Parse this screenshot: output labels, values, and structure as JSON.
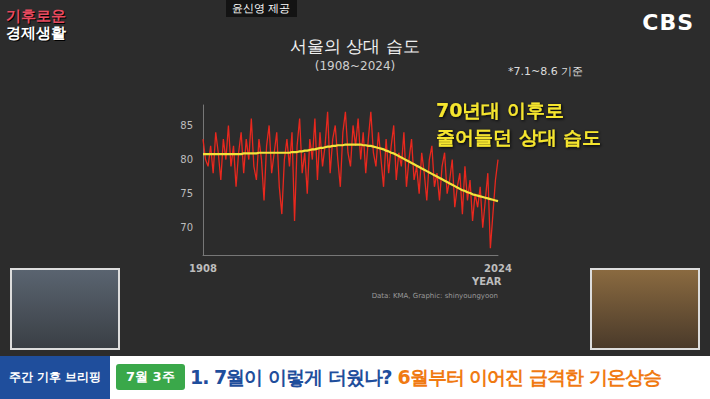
{
  "chart_data": {
    "type": "line",
    "title": "서울의 상대 습도",
    "subtitle": "(1908~2024)",
    "note": "*7.1~8.6 기준",
    "annotation": [
      "70년대 이후로",
      "줄어들던 상대 습도"
    ],
    "source": "Data: KMA, Graphic: shinyoungyoon",
    "x_label": "YEAR",
    "x": [
      1908,
      1909,
      1910,
      1911,
      1912,
      1913,
      1914,
      1915,
      1916,
      1917,
      1918,
      1919,
      1920,
      1921,
      1922,
      1923,
      1924,
      1925,
      1926,
      1927,
      1928,
      1929,
      1930,
      1931,
      1932,
      1933,
      1934,
      1935,
      1936,
      1937,
      1938,
      1939,
      1940,
      1941,
      1942,
      1943,
      1944,
      1945,
      1946,
      1947,
      1948,
      1949,
      1950,
      1951,
      1952,
      1953,
      1954,
      1955,
      1956,
      1957,
      1958,
      1959,
      1960,
      1961,
      1962,
      1963,
      1964,
      1965,
      1966,
      1967,
      1968,
      1969,
      1970,
      1971,
      1972,
      1973,
      1974,
      1975,
      1976,
      1977,
      1978,
      1979,
      1980,
      1981,
      1982,
      1983,
      1984,
      1985,
      1986,
      1987,
      1988,
      1989,
      1990,
      1991,
      1992,
      1993,
      1994,
      1995,
      1996,
      1997,
      1998,
      1999,
      2000,
      2001,
      2002,
      2003,
      2004,
      2005,
      2006,
      2007,
      2008,
      2009,
      2010,
      2011,
      2012,
      2013,
      2014,
      2015,
      2016,
      2017,
      2018,
      2019,
      2020,
      2021,
      2022,
      2023,
      2024
    ],
    "series": [
      {
        "color": "#e8281e",
        "values": [
          83,
          80,
          79,
          82,
          78,
          84,
          81,
          77,
          83,
          80,
          85,
          79,
          82,
          76,
          81,
          84,
          78,
          83,
          80,
          86,
          79,
          77,
          83,
          80,
          74,
          82,
          85,
          78,
          81,
          84,
          76,
          72,
          80,
          83,
          79,
          84,
          71,
          82,
          86,
          78,
          81,
          75,
          83,
          80,
          86,
          77,
          84,
          79,
          82,
          87,
          78,
          83,
          85,
          80,
          76,
          84,
          87,
          81,
          79,
          85,
          82,
          86,
          80,
          84,
          78,
          83,
          87,
          81,
          79,
          84,
          80,
          76,
          83,
          78,
          82,
          85,
          77,
          81,
          79,
          84,
          76,
          80,
          83,
          77,
          79,
          75,
          81,
          78,
          74,
          80,
          82,
          76,
          78,
          74,
          79,
          81,
          75,
          77,
          80,
          73,
          76,
          78,
          72,
          79,
          74,
          77,
          71,
          75,
          73,
          76,
          70,
          74,
          78,
          67,
          72,
          77,
          80
        ]
      },
      {
        "color": "#f2e33a",
        "values": [
          80.8,
          80.8,
          80.8,
          80.8,
          80.8,
          80.8,
          80.8,
          80.8,
          80.8,
          80.8,
          80.8,
          80.8,
          80.8,
          80.8,
          80.8,
          80.8,
          80.9,
          80.9,
          80.9,
          80.9,
          80.9,
          80.9,
          81.0,
          81.0,
          81.0,
          81.0,
          81.0,
          81.0,
          81.0,
          81.0,
          81.0,
          81.0,
          81.0,
          81.0,
          81.0,
          81.1,
          81.1,
          81.1,
          81.2,
          81.2,
          81.3,
          81.3,
          81.4,
          81.5,
          81.5,
          81.6,
          81.7,
          81.7,
          81.8,
          81.9,
          81.9,
          82.0,
          82.0,
          82.1,
          82.1,
          82.1,
          82.2,
          82.2,
          82.2,
          82.2,
          82.2,
          82.2,
          82.2,
          82.1,
          82.1,
          82.0,
          82.0,
          81.9,
          81.8,
          81.7,
          81.6,
          81.5,
          81.3,
          81.2,
          81.0,
          80.9,
          80.7,
          80.5,
          80.3,
          80.1,
          79.9,
          79.7,
          79.5,
          79.3,
          79.1,
          78.9,
          78.7,
          78.5,
          78.3,
          78.1,
          77.9,
          77.7,
          77.5,
          77.3,
          77.1,
          76.9,
          76.7,
          76.5,
          76.3,
          76.1,
          75.9,
          75.7,
          75.5,
          75.4,
          75.2,
          75.1,
          74.9,
          74.8,
          74.7,
          74.6,
          74.5,
          74.4,
          74.3,
          74.2,
          74.1,
          74.0,
          73.9
        ]
      }
    ],
    "xlim": [
      1908,
      2024
    ],
    "xticks": [
      1908,
      2024
    ],
    "ylim": [
      66,
      88
    ],
    "yticks": [
      70,
      75,
      80,
      85
    ],
    "grid": false
  },
  "screen": {
    "credit": "윤신영 제공",
    "show": [
      "기후로운",
      "경제생활"
    ],
    "channel": "CBS",
    "banner": {
      "section": "주간 기후 브리핑",
      "week": "7월 3주",
      "headline": "1. 7월이 이렇게 더웠나?",
      "headline_highlight": "6월부터 이어진 급격한 기온상승"
    }
  }
}
